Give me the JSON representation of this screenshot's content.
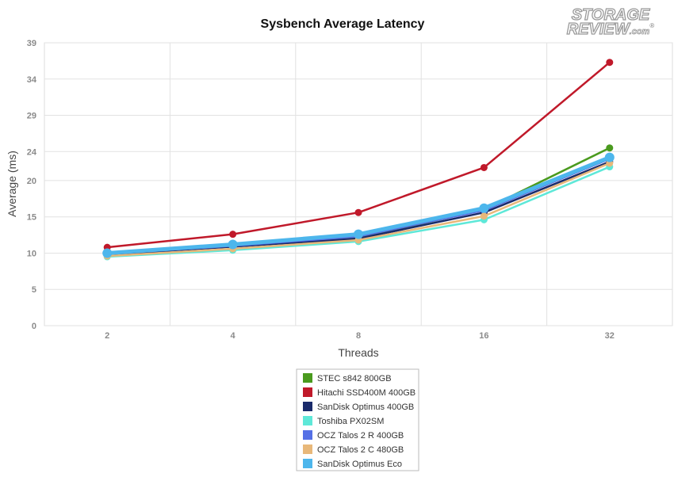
{
  "chart_data": {
    "type": "line",
    "title": "Sysbench Average Latency",
    "xlabel": "Threads",
    "ylabel": "Average (ms)",
    "categories": [
      "2",
      "4",
      "8",
      "16",
      "32"
    ],
    "y_ticks": [
      0,
      5,
      10,
      15,
      20,
      24,
      29,
      34,
      39
    ],
    "ylim": [
      0,
      39
    ],
    "grid": true,
    "legend_position": "bottom-center",
    "series": [
      {
        "name": "STEC s842 800GB",
        "color": "#4a9a1e",
        "values": [
          9.9,
          10.9,
          12.1,
          16.0,
          24.5
        ]
      },
      {
        "name": "Hitachi SSD400M 400GB",
        "color": "#c0192a",
        "values": [
          10.8,
          12.6,
          15.6,
          21.8,
          36.3
        ]
      },
      {
        "name": "SanDisk Optimus 400GB",
        "color": "#1a2b6b",
        "values": [
          9.8,
          10.9,
          12.0,
          15.6,
          22.6
        ]
      },
      {
        "name": "Toshiba PX02SM",
        "color": "#5ee8d8",
        "values": [
          9.5,
          10.4,
          11.6,
          14.6,
          21.9
        ]
      },
      {
        "name": "OCZ Talos 2 R 400GB",
        "color": "#5570e6",
        "values": [
          9.9,
          11.0,
          12.3,
          15.9,
          23.0
        ]
      },
      {
        "name": "OCZ Talos 2 C 480GB",
        "color": "#e8b87a",
        "values": [
          9.6,
          10.6,
          11.8,
          15.1,
          22.4
        ]
      },
      {
        "name": "SanDisk Optimus Eco",
        "color": "#4db6ec",
        "values": [
          10.0,
          11.2,
          12.6,
          16.2,
          23.2
        ]
      }
    ]
  },
  "logo": {
    "line1": "STORAGE",
    "line2": "REVIEW",
    "suffix": ".com",
    "mark": "®"
  }
}
